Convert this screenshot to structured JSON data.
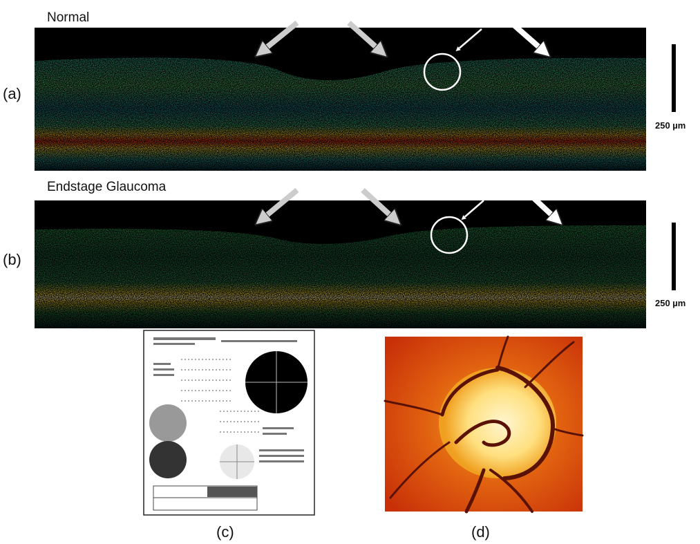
{
  "panels": [
    {
      "label": "(a)",
      "title": "Normal",
      "scale": "250 µm"
    },
    {
      "label": "(b)",
      "title": "Endstage Glaucoma",
      "scale": "250 µm"
    },
    {
      "label": "(c)"
    },
    {
      "label": "(d)"
    }
  ]
}
